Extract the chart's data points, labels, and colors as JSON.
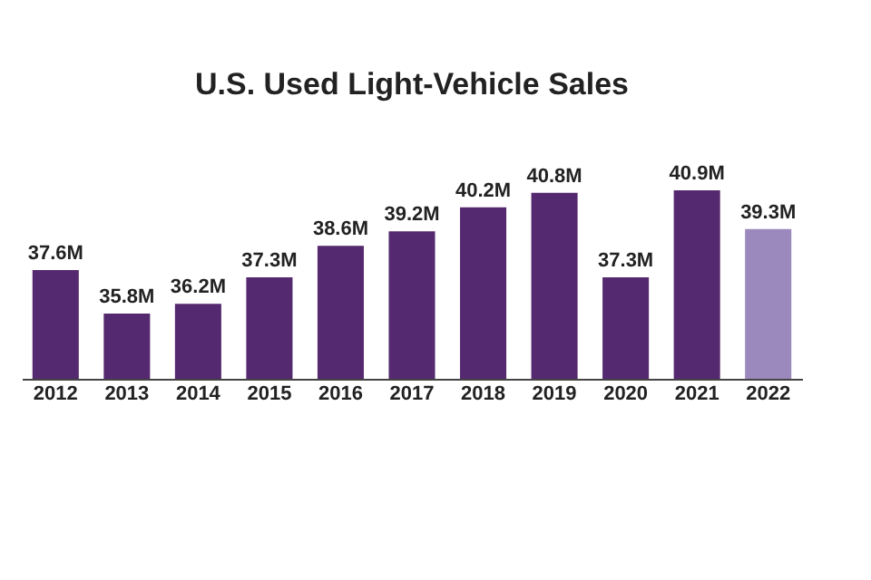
{
  "chart_data": {
    "type": "bar",
    "title": "U.S. Used Light-Vehicle Sales",
    "categories": [
      "2012",
      "2013",
      "2014",
      "2015",
      "2016",
      "2017",
      "2018",
      "2019",
      "2020",
      "2021",
      "2022"
    ],
    "values": [
      37.6,
      35.8,
      36.2,
      37.3,
      38.6,
      39.2,
      40.2,
      40.8,
      37.3,
      40.9,
      39.3
    ],
    "value_labels": [
      "37.6M",
      "35.8M",
      "36.2M",
      "37.3M",
      "38.6M",
      "39.2M",
      "40.2M",
      "40.8M",
      "37.3M",
      "40.9M",
      "39.3M"
    ],
    "colors": [
      "#55296f",
      "#55296f",
      "#55296f",
      "#55296f",
      "#55296f",
      "#55296f",
      "#55296f",
      "#55296f",
      "#55296f",
      "#55296f",
      "#9b89bd"
    ],
    "ylim": [
      33.1,
      40.9
    ],
    "tick_labels": "x",
    "grid": false
  }
}
